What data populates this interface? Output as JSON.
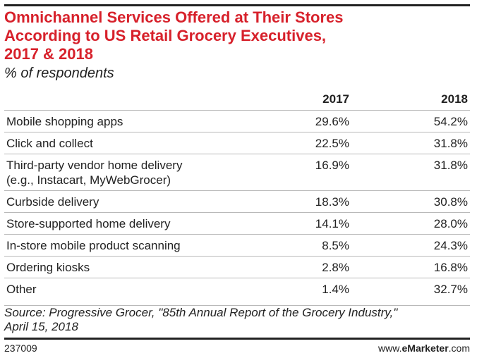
{
  "chart_data": {
    "type": "table",
    "title_lines": [
      "Omnichannel Services Offered at Their Stores",
      "According to US Retail Grocery Executives,",
      "2017 & 2018"
    ],
    "subtitle": "% of respondents",
    "columns": [
      "",
      "2017",
      "2018"
    ],
    "rows": [
      {
        "label_lines": [
          "Mobile shopping apps"
        ],
        "v2017": "29.6%",
        "v2018": "54.2%"
      },
      {
        "label_lines": [
          "Click and collect"
        ],
        "v2017": "22.5%",
        "v2018": "31.8%"
      },
      {
        "label_lines": [
          "Third-party vendor home delivery",
          "(e.g., Instacart, MyWebGrocer)"
        ],
        "v2017": "16.9%",
        "v2018": "31.8%"
      },
      {
        "label_lines": [
          "Curbside delivery"
        ],
        "v2017": "18.3%",
        "v2018": "30.8%"
      },
      {
        "label_lines": [
          "Store-supported home delivery"
        ],
        "v2017": "14.1%",
        "v2018": "28.0%"
      },
      {
        "label_lines": [
          "In-store mobile product scanning"
        ],
        "v2017": "8.5%",
        "v2018": "24.3%"
      },
      {
        "label_lines": [
          "Ordering kiosks"
        ],
        "v2017": "2.8%",
        "v2018": "16.8%"
      },
      {
        "label_lines": [
          "Other"
        ],
        "v2017": "1.4%",
        "v2018": "32.7%"
      }
    ],
    "source_lines": [
      "Source: Progressive Grocer, \"85th Annual Report of the Grocery Industry,\"",
      "April 15, 2018"
    ],
    "chart_id": "237009",
    "brand": {
      "prefix": "www.",
      "name": "eMarketer",
      "suffix": ".com"
    },
    "colors": {
      "title": "#d7212b",
      "rules": "#222222",
      "row_divider": "#b9b9b9"
    }
  }
}
